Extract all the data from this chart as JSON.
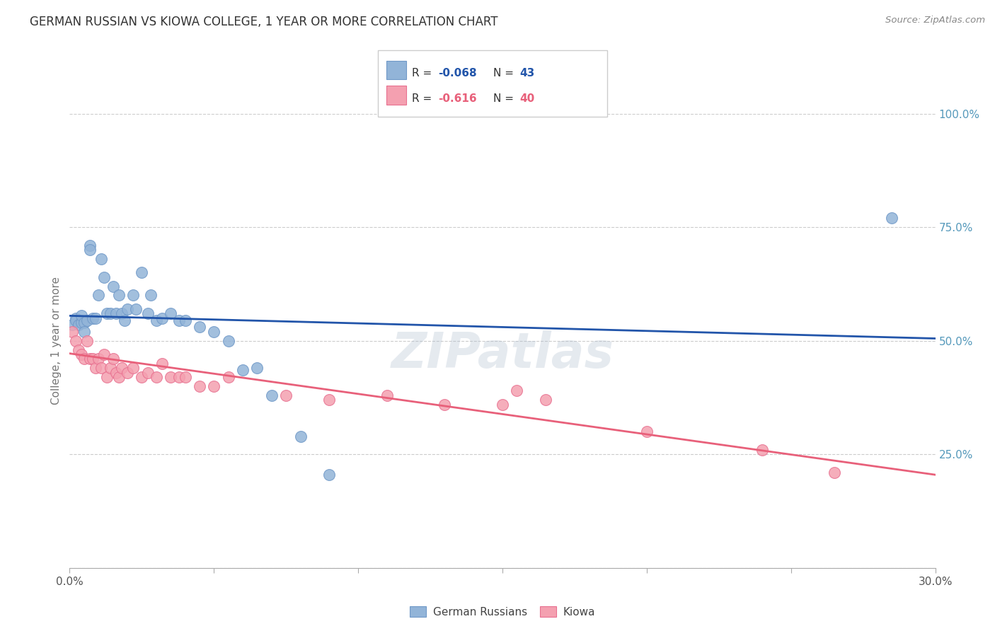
{
  "title": "GERMAN RUSSIAN VS KIOWA COLLEGE, 1 YEAR OR MORE CORRELATION CHART",
  "source": "Source: ZipAtlas.com",
  "ylabel": "College, 1 year or more",
  "yticks": [
    0.0,
    0.25,
    0.5,
    0.75,
    1.0
  ],
  "ytick_labels": [
    "",
    "25.0%",
    "50.0%",
    "75.0%",
    "100.0%"
  ],
  "xticks": [
    0.0,
    0.05,
    0.1,
    0.15,
    0.2,
    0.25,
    0.3
  ],
  "legend_blue_label": "German Russians",
  "legend_pink_label": "Kiowa",
  "blue_color": "#92B4D8",
  "pink_color": "#F4A0B0",
  "blue_edge_color": "#7099C8",
  "pink_edge_color": "#E87090",
  "blue_line_color": "#2255AA",
  "pink_line_color": "#E8607A",
  "blue_scatter_x": [
    0.001,
    0.002,
    0.002,
    0.003,
    0.004,
    0.004,
    0.005,
    0.005,
    0.006,
    0.007,
    0.007,
    0.008,
    0.009,
    0.01,
    0.011,
    0.012,
    0.013,
    0.014,
    0.015,
    0.016,
    0.017,
    0.018,
    0.019,
    0.02,
    0.022,
    0.023,
    0.025,
    0.027,
    0.028,
    0.03,
    0.032,
    0.035,
    0.038,
    0.04,
    0.045,
    0.05,
    0.055,
    0.06,
    0.065,
    0.07,
    0.08,
    0.09,
    0.285
  ],
  "blue_scatter_y": [
    0.535,
    0.55,
    0.545,
    0.535,
    0.54,
    0.555,
    0.54,
    0.52,
    0.545,
    0.71,
    0.7,
    0.55,
    0.55,
    0.6,
    0.68,
    0.64,
    0.56,
    0.56,
    0.62,
    0.56,
    0.6,
    0.56,
    0.545,
    0.57,
    0.6,
    0.57,
    0.65,
    0.56,
    0.6,
    0.545,
    0.55,
    0.56,
    0.545,
    0.545,
    0.53,
    0.52,
    0.5,
    0.435,
    0.44,
    0.38,
    0.29,
    0.205,
    0.77
  ],
  "pink_scatter_x": [
    0.001,
    0.002,
    0.003,
    0.004,
    0.005,
    0.006,
    0.007,
    0.008,
    0.009,
    0.01,
    0.011,
    0.012,
    0.013,
    0.014,
    0.015,
    0.016,
    0.017,
    0.018,
    0.02,
    0.022,
    0.025,
    0.027,
    0.03,
    0.032,
    0.035,
    0.038,
    0.04,
    0.045,
    0.05,
    0.055,
    0.075,
    0.09,
    0.11,
    0.13,
    0.15,
    0.155,
    0.165,
    0.2,
    0.24,
    0.265
  ],
  "pink_scatter_y": [
    0.52,
    0.5,
    0.48,
    0.47,
    0.46,
    0.5,
    0.46,
    0.46,
    0.44,
    0.46,
    0.44,
    0.47,
    0.42,
    0.44,
    0.46,
    0.43,
    0.42,
    0.44,
    0.43,
    0.44,
    0.42,
    0.43,
    0.42,
    0.45,
    0.42,
    0.42,
    0.42,
    0.4,
    0.4,
    0.42,
    0.38,
    0.37,
    0.38,
    0.36,
    0.36,
    0.39,
    0.37,
    0.3,
    0.26,
    0.21
  ],
  "blue_line_x": [
    0.0,
    0.3
  ],
  "blue_line_y": [
    0.555,
    0.505
  ],
  "pink_line_x": [
    0.0,
    0.3
  ],
  "pink_line_y": [
    0.472,
    0.205
  ],
  "watermark": "ZIPatlas",
  "background_color": "#FFFFFF",
  "grid_color": "#CCCCCC",
  "title_color": "#333333",
  "source_color": "#888888",
  "ylabel_color": "#777777",
  "yticklabel_color": "#5599BB",
  "xticklabel_color": "#555555"
}
